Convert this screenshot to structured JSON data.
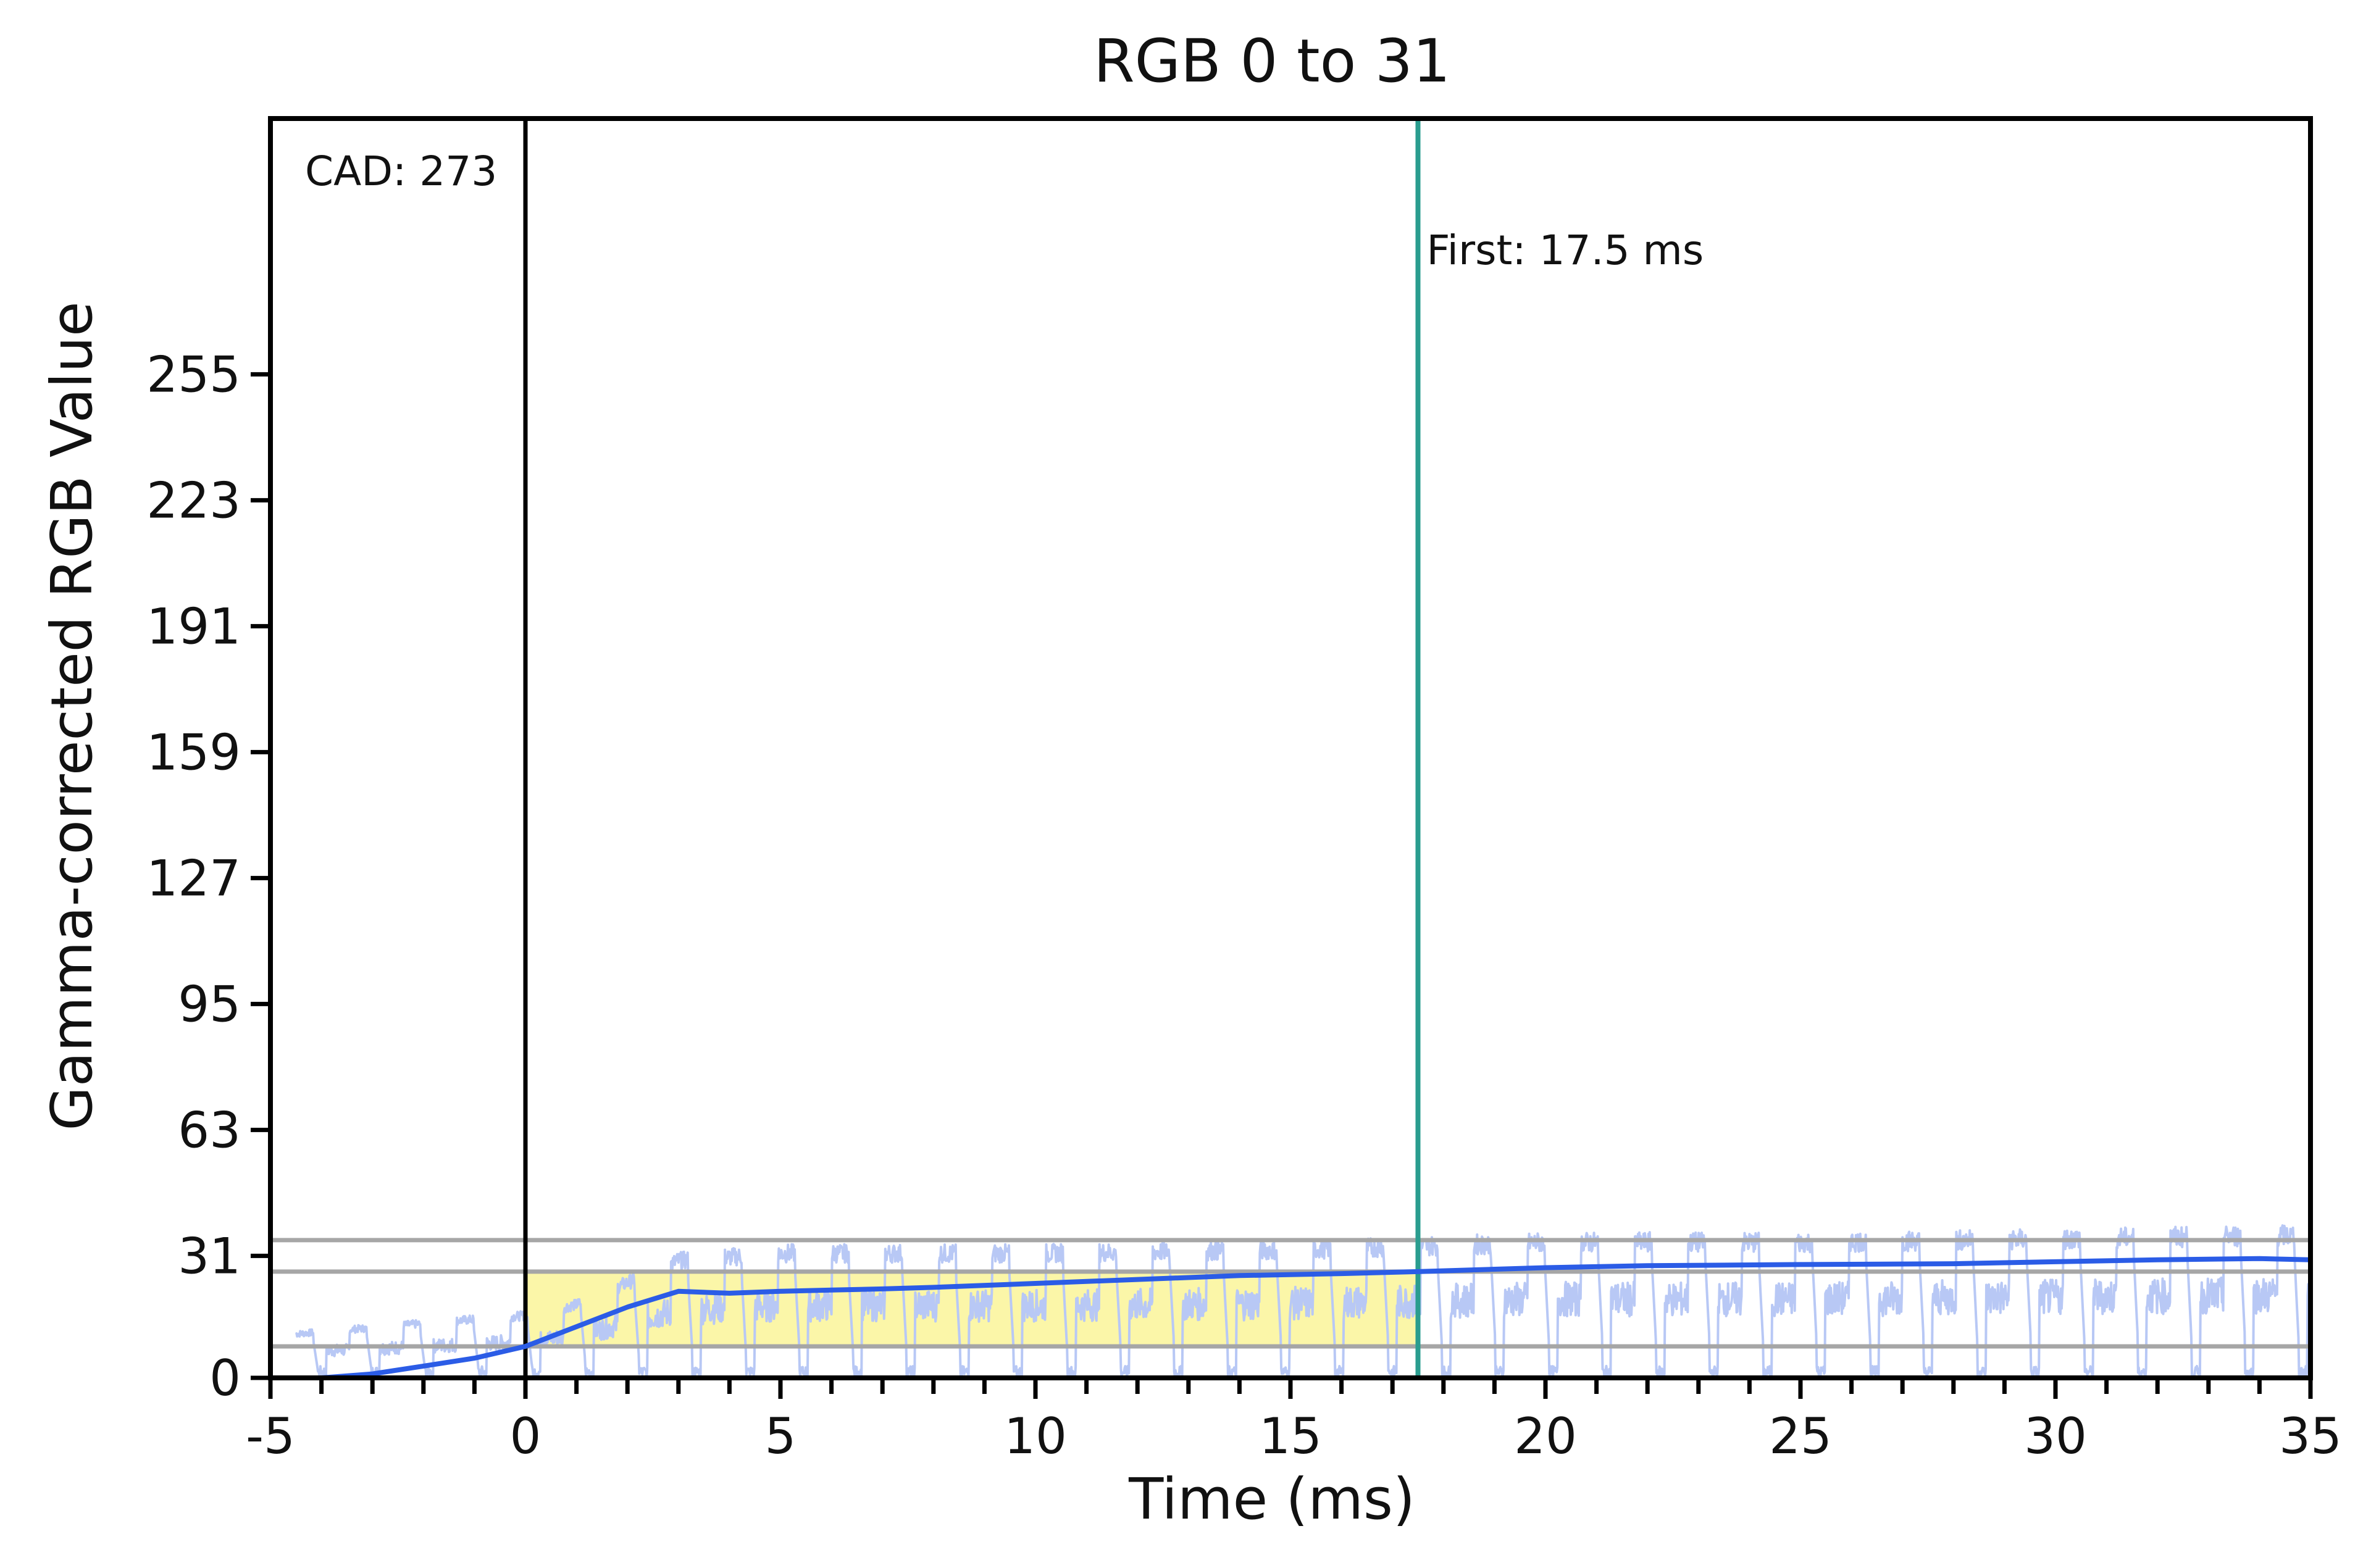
{
  "chart_data": {
    "type": "line",
    "title": "RGB 0 to 31",
    "xlabel": "Time (ms)",
    "ylabel": "Gamma-corrected RGB Value",
    "xlim": [
      -5,
      35
    ],
    "ylim": [
      0,
      320
    ],
    "x_ticks": [
      -5,
      0,
      5,
      10,
      15,
      20,
      25,
      30,
      35
    ],
    "x_tick_labels": [
      "-5",
      "0",
      "5",
      "10",
      "15",
      "20",
      "25",
      "30",
      "35"
    ],
    "x_minor_tick_step": 1,
    "y_ticks": [
      0,
      31,
      63,
      95,
      127,
      159,
      191,
      223,
      255
    ],
    "y_tick_labels": [
      "0",
      "31",
      "63",
      "95",
      "127",
      "159",
      "191",
      "223",
      "255"
    ],
    "grid": false,
    "reference_lines": {
      "horizontal": [
        8,
        27,
        35
      ],
      "vertical_start": 0,
      "vertical_first": 17.5
    },
    "annotations": {
      "cad": "CAD: 273",
      "first": "First: 17.5 ms"
    },
    "highlight_region": {
      "x_start": 0,
      "x_end": 17.5,
      "y_low": 8,
      "y_high": 27
    },
    "series": [
      {
        "style": "smoothed",
        "x": [
          -5,
          -4,
          -3,
          -2,
          -1,
          0,
          1,
          2,
          3,
          4,
          5,
          6,
          7,
          8,
          10,
          12,
          14,
          16,
          17.5,
          20,
          22,
          25,
          28,
          30,
          32,
          34,
          35
        ],
        "values": [
          0,
          0,
          1,
          3,
          5,
          8,
          13,
          18,
          22,
          21.5,
          22,
          22.3,
          22.6,
          23,
          24,
          25,
          26,
          26.5,
          27,
          28,
          28.5,
          28.8,
          29,
          29.5,
          30,
          30.3,
          30
        ]
      },
      {
        "style": "raw",
        "x_start": -4.5,
        "x_end": 35,
        "pulse_period_ms": 1.05,
        "level_points": [
          [
            -5,
            0
          ],
          [
            -4.5,
            12
          ],
          [
            -1,
            16
          ],
          [
            0,
            17
          ],
          [
            1,
            20
          ],
          [
            2,
            26
          ],
          [
            3,
            32
          ],
          [
            5,
            34
          ],
          [
            10,
            34
          ],
          [
            15,
            35
          ],
          [
            17.5,
            36
          ],
          [
            20,
            37
          ],
          [
            25,
            37
          ],
          [
            30,
            38
          ],
          [
            35,
            39
          ]
        ]
      }
    ],
    "colors": {
      "smoothed_line": "#2b5ce6",
      "raw_line": "#b8c8f5",
      "highlight_fill": "#fbf6a8",
      "first_line": "#2a9d8f",
      "start_line": "#000000",
      "reference_lines": "#a6a6a6",
      "axes": "#000000"
    }
  }
}
